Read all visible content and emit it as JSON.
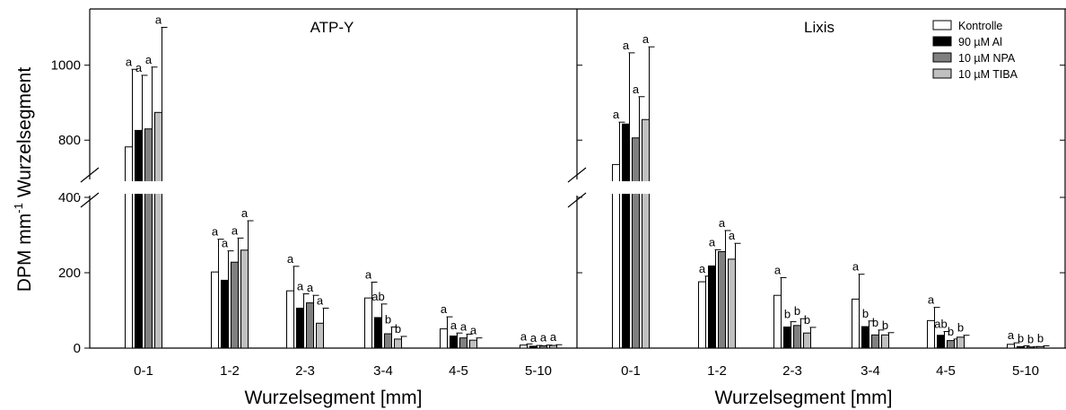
{
  "chart_data": {
    "type": "bar",
    "ylabel": "DPM mm",
    "ylabel_sup": "-1",
    "ylabel_tail": " Wurzelsegment",
    "xlabel": "Wurzelsegment [mm]",
    "categories": [
      "0-1",
      "1-2",
      "2-3",
      "3-4",
      "4-5",
      "5-10"
    ],
    "legend": {
      "position": "top-right",
      "entries": [
        {
          "name": "Kontrolle",
          "color": "#ffffff"
        },
        {
          "name": "90 µM Al",
          "color": "#000000"
        },
        {
          "name": "10 µM NPA",
          "color": "#808080"
        },
        {
          "name": "10 µM TIBA",
          "color": "#c0c0c0"
        }
      ]
    },
    "y_axis": {
      "broken": true,
      "lower_range": [
        0,
        400
      ],
      "upper_range": [
        700,
        1150
      ],
      "lower_ticks": [
        0,
        200,
        400
      ],
      "upper_ticks": [
        800,
        1000
      ]
    },
    "error_bars": "upper",
    "panels": [
      {
        "title": "ATP-Y",
        "series": [
          {
            "name": "Kontrolle",
            "values": [
              782,
              202,
              152,
              133,
              51,
              8
            ],
            "errors": [
              207,
              87,
              65,
              42,
              32,
              3
            ],
            "labels": [
              "a",
              "a",
              "a",
              "a",
              "a",
              "a"
            ]
          },
          {
            "name": "90 µM Al",
            "values": [
              826,
              180,
              106,
              81,
              32,
              5
            ],
            "errors": [
              147,
              78,
              38,
              36,
              8,
              2
            ],
            "labels": [
              "a",
              "a",
              "a",
              "ab",
              "a",
              "a"
            ]
          },
          {
            "name": "10 µM NPA",
            "values": [
              830,
              228,
              120,
              38,
              27,
              6
            ],
            "errors": [
              165,
              64,
              20,
              18,
              10,
              2
            ],
            "labels": [
              "a",
              "a",
              "a",
              "b",
              "a",
              "a"
            ]
          },
          {
            "name": "10 µM TIBA",
            "values": [
              874,
              260,
              66,
              24,
              21,
              7
            ],
            "errors": [
              227,
              78,
              40,
              7,
              6,
              2
            ],
            "labels": [
              "a",
              "a",
              "a",
              "b",
              "a",
              "a"
            ]
          }
        ]
      },
      {
        "title": "Lixis",
        "series": [
          {
            "name": "Kontrolle",
            "values": [
              735,
              176,
              140,
              130,
              73,
              10
            ],
            "errors": [
              113,
              15,
              47,
              66,
              35,
              4
            ],
            "labels": [
              "a",
              "a",
              "a",
              "a",
              "a",
              "a"
            ]
          },
          {
            "name": "90 µM Al",
            "values": [
              843,
              218,
              56,
              57,
              34,
              4
            ],
            "errors": [
              190,
              43,
              14,
              15,
              10,
              2
            ],
            "labels": [
              "a",
              "a",
              "b",
              "b",
              "ab",
              "b"
            ]
          },
          {
            "name": "10 µM NPA",
            "values": [
              806,
              256,
              60,
              35,
              20,
              3
            ],
            "errors": [
              110,
              56,
              18,
              13,
              4,
              1
            ],
            "labels": [
              "a",
              "a",
              "b",
              "b",
              "b",
              "b"
            ]
          },
          {
            "name": "10 µM TIBA",
            "values": [
              855,
              236,
              40,
              35,
              29,
              4
            ],
            "errors": [
              194,
              42,
              15,
              6,
              5,
              2
            ],
            "labels": [
              "a",
              "a",
              "b",
              "b",
              "b",
              "b"
            ]
          }
        ]
      }
    ]
  }
}
